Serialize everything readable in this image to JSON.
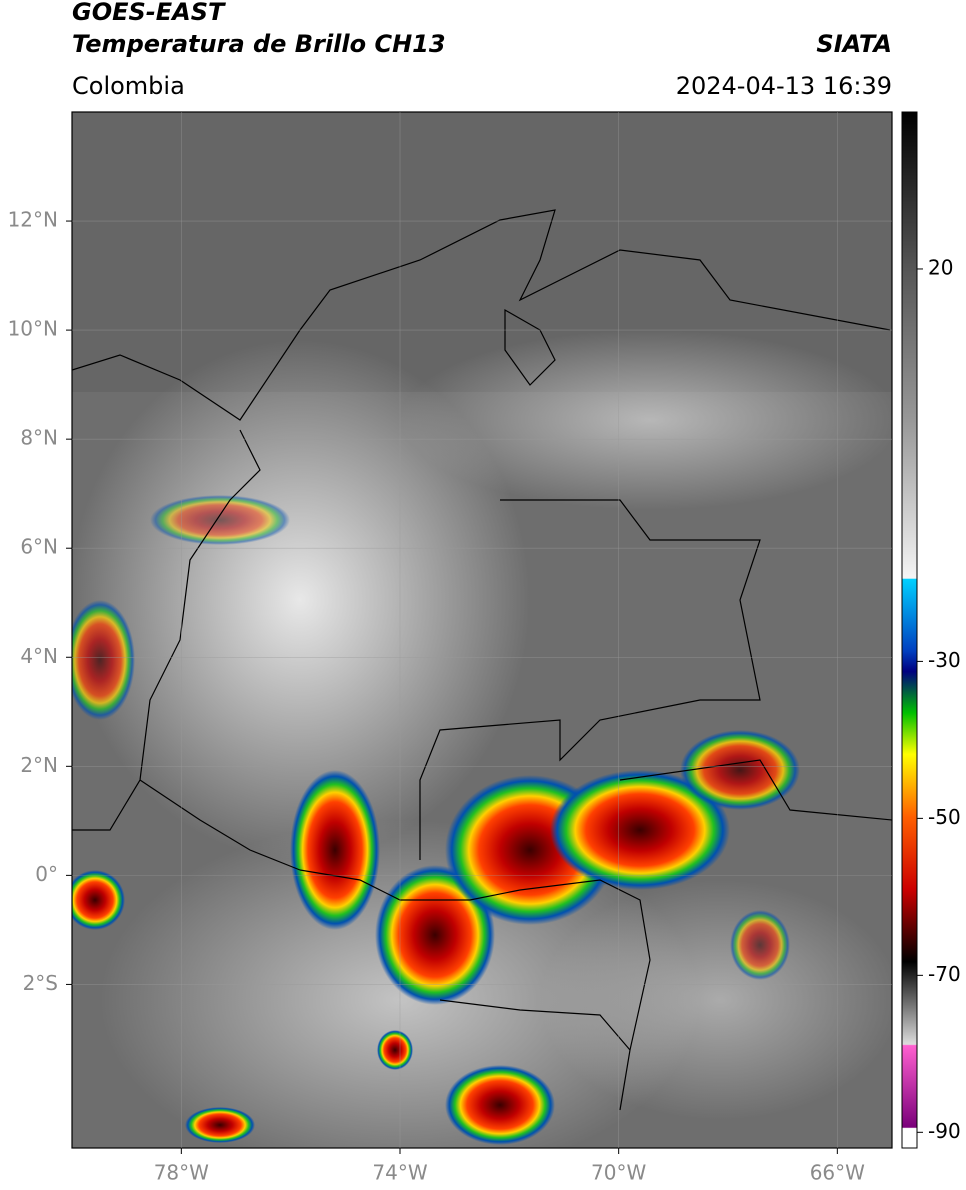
{
  "header": {
    "satellite": "GOES-EAST",
    "product": "Temperatura de Brillo CH13",
    "region": "Colombia",
    "source": "SIATA",
    "datetime": "2024-04-13 16:39"
  },
  "map": {
    "xlim": [
      -80,
      -65
    ],
    "ylim": [
      -5,
      14
    ],
    "xticks": [
      {
        "value": -78,
        "label": "78°W"
      },
      {
        "value": -74,
        "label": "74°W"
      },
      {
        "value": -70,
        "label": "70°W"
      },
      {
        "value": -66,
        "label": "66°W"
      }
    ],
    "yticks": [
      {
        "value": 12,
        "label": "12°N"
      },
      {
        "value": 10,
        "label": "10°N"
      },
      {
        "value": 8,
        "label": "8°N"
      },
      {
        "value": 6,
        "label": "6°N"
      },
      {
        "value": 4,
        "label": "4°N"
      },
      {
        "value": 2,
        "label": "2°N"
      },
      {
        "value": 0,
        "label": "0°"
      },
      {
        "value": -2,
        "label": "2°S"
      }
    ]
  },
  "colorbar": {
    "lim": [
      -92,
      40
    ],
    "ticks": [
      20,
      -30,
      -50,
      -70,
      -90
    ]
  }
}
